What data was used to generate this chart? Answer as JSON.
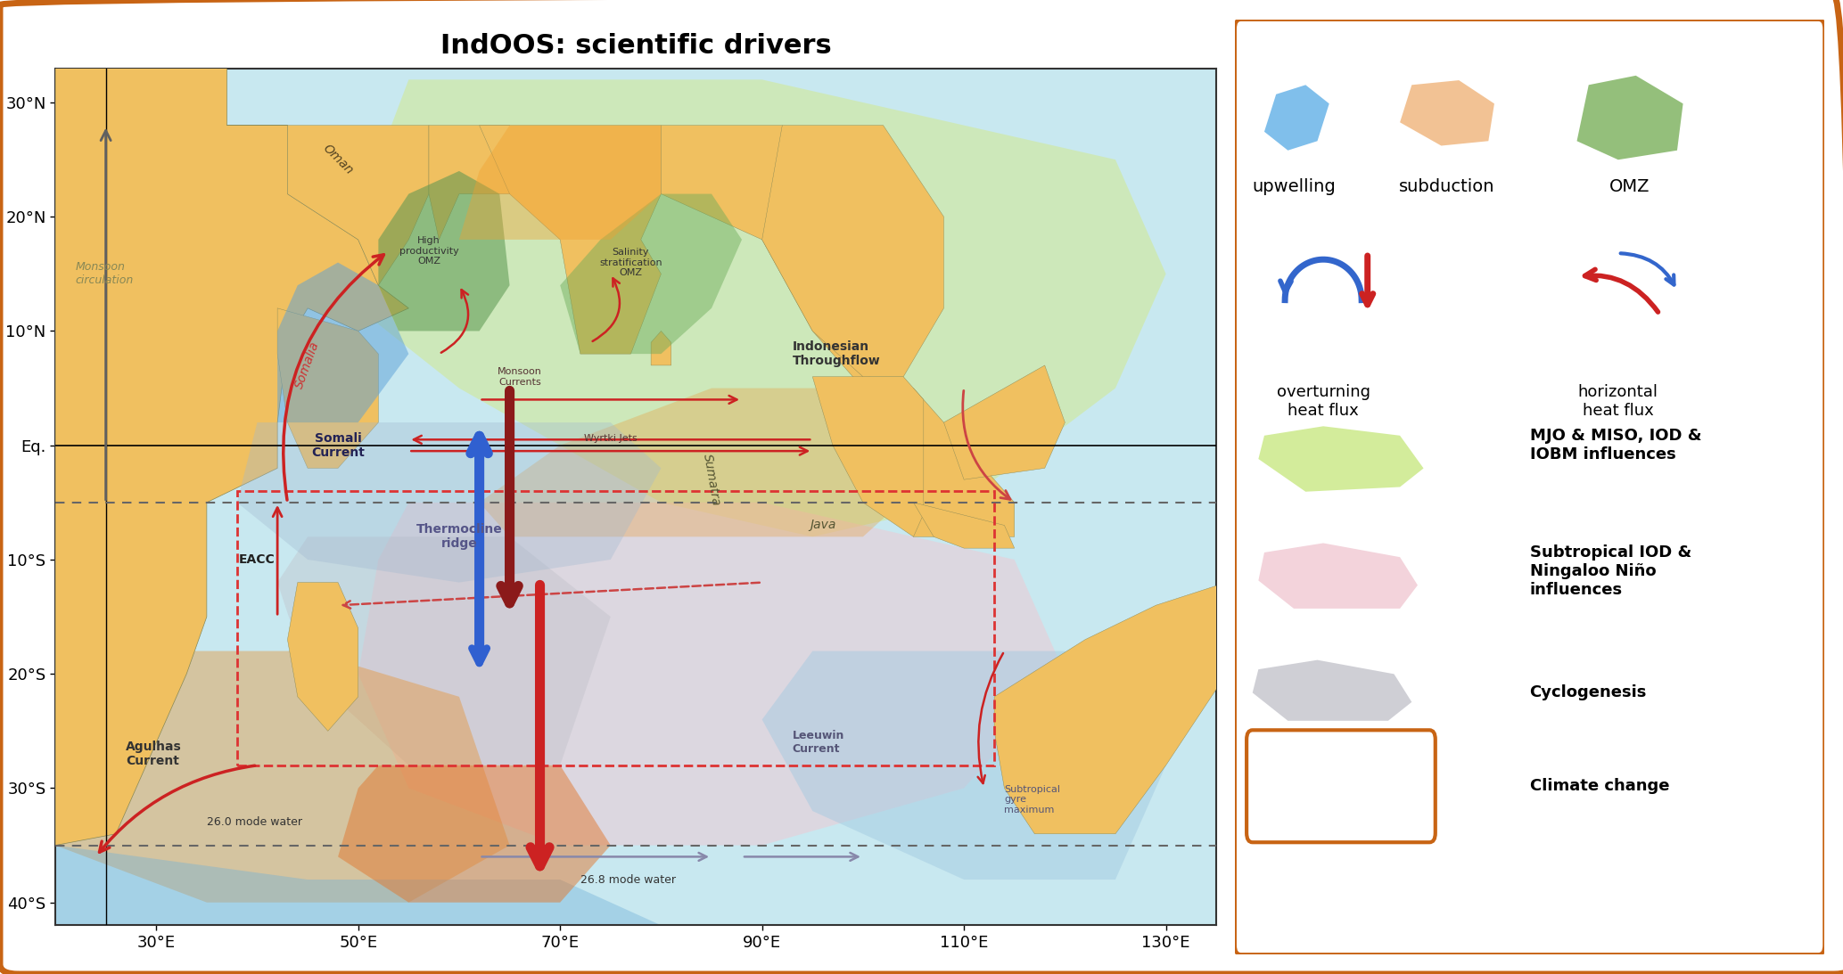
{
  "title": "IndOOS: scientific drivers",
  "map_xlim": [
    20,
    135
  ],
  "map_ylim": [
    -42,
    33
  ],
  "bg_color": "#c8e8f0",
  "land_color_main": "#f0c060",
  "border_color": "#c86414",
  "fig_bg": "#ffffff",
  "xticks": [
    30,
    50,
    70,
    90,
    110,
    130
  ],
  "yticks": [
    -40,
    -30,
    -20,
    -10,
    0,
    10,
    20,
    30
  ],
  "ytick_labels": [
    "40°S",
    "30°S",
    "20°S",
    "10°S",
    "Eq.",
    "10°N",
    "20°N",
    "30°N"
  ],
  "xtick_labels": [
    "30°E",
    "50°E",
    "70°E",
    "90°E",
    "110°E",
    "130°E"
  ],
  "legend_items": [
    {
      "type": "blob",
      "color": "#6ab4e8",
      "label": "upwelling"
    },
    {
      "type": "blob",
      "color": "#f0b882",
      "label": "subduction"
    },
    {
      "type": "blob",
      "color": "#82b464",
      "label": "OMZ"
    },
    {
      "type": "overturning",
      "label": "overturning\nheat flux"
    },
    {
      "type": "horizontal",
      "label": "horizontal\nheat flux"
    },
    {
      "type": "filled_blob",
      "color": "#c8e882",
      "label": "MJO & MISO, IOD &\nIOBM influences"
    },
    {
      "type": "filled_blob",
      "color": "#f0c8d2",
      "label": "Subtropical IOD &\nNingaloo Niño\ninfluences"
    },
    {
      "type": "filled_blob",
      "color": "#c8c8c8",
      "label": "Cyclogenesis"
    },
    {
      "type": "rect",
      "color": "#c86414",
      "label": "Climate change"
    }
  ]
}
